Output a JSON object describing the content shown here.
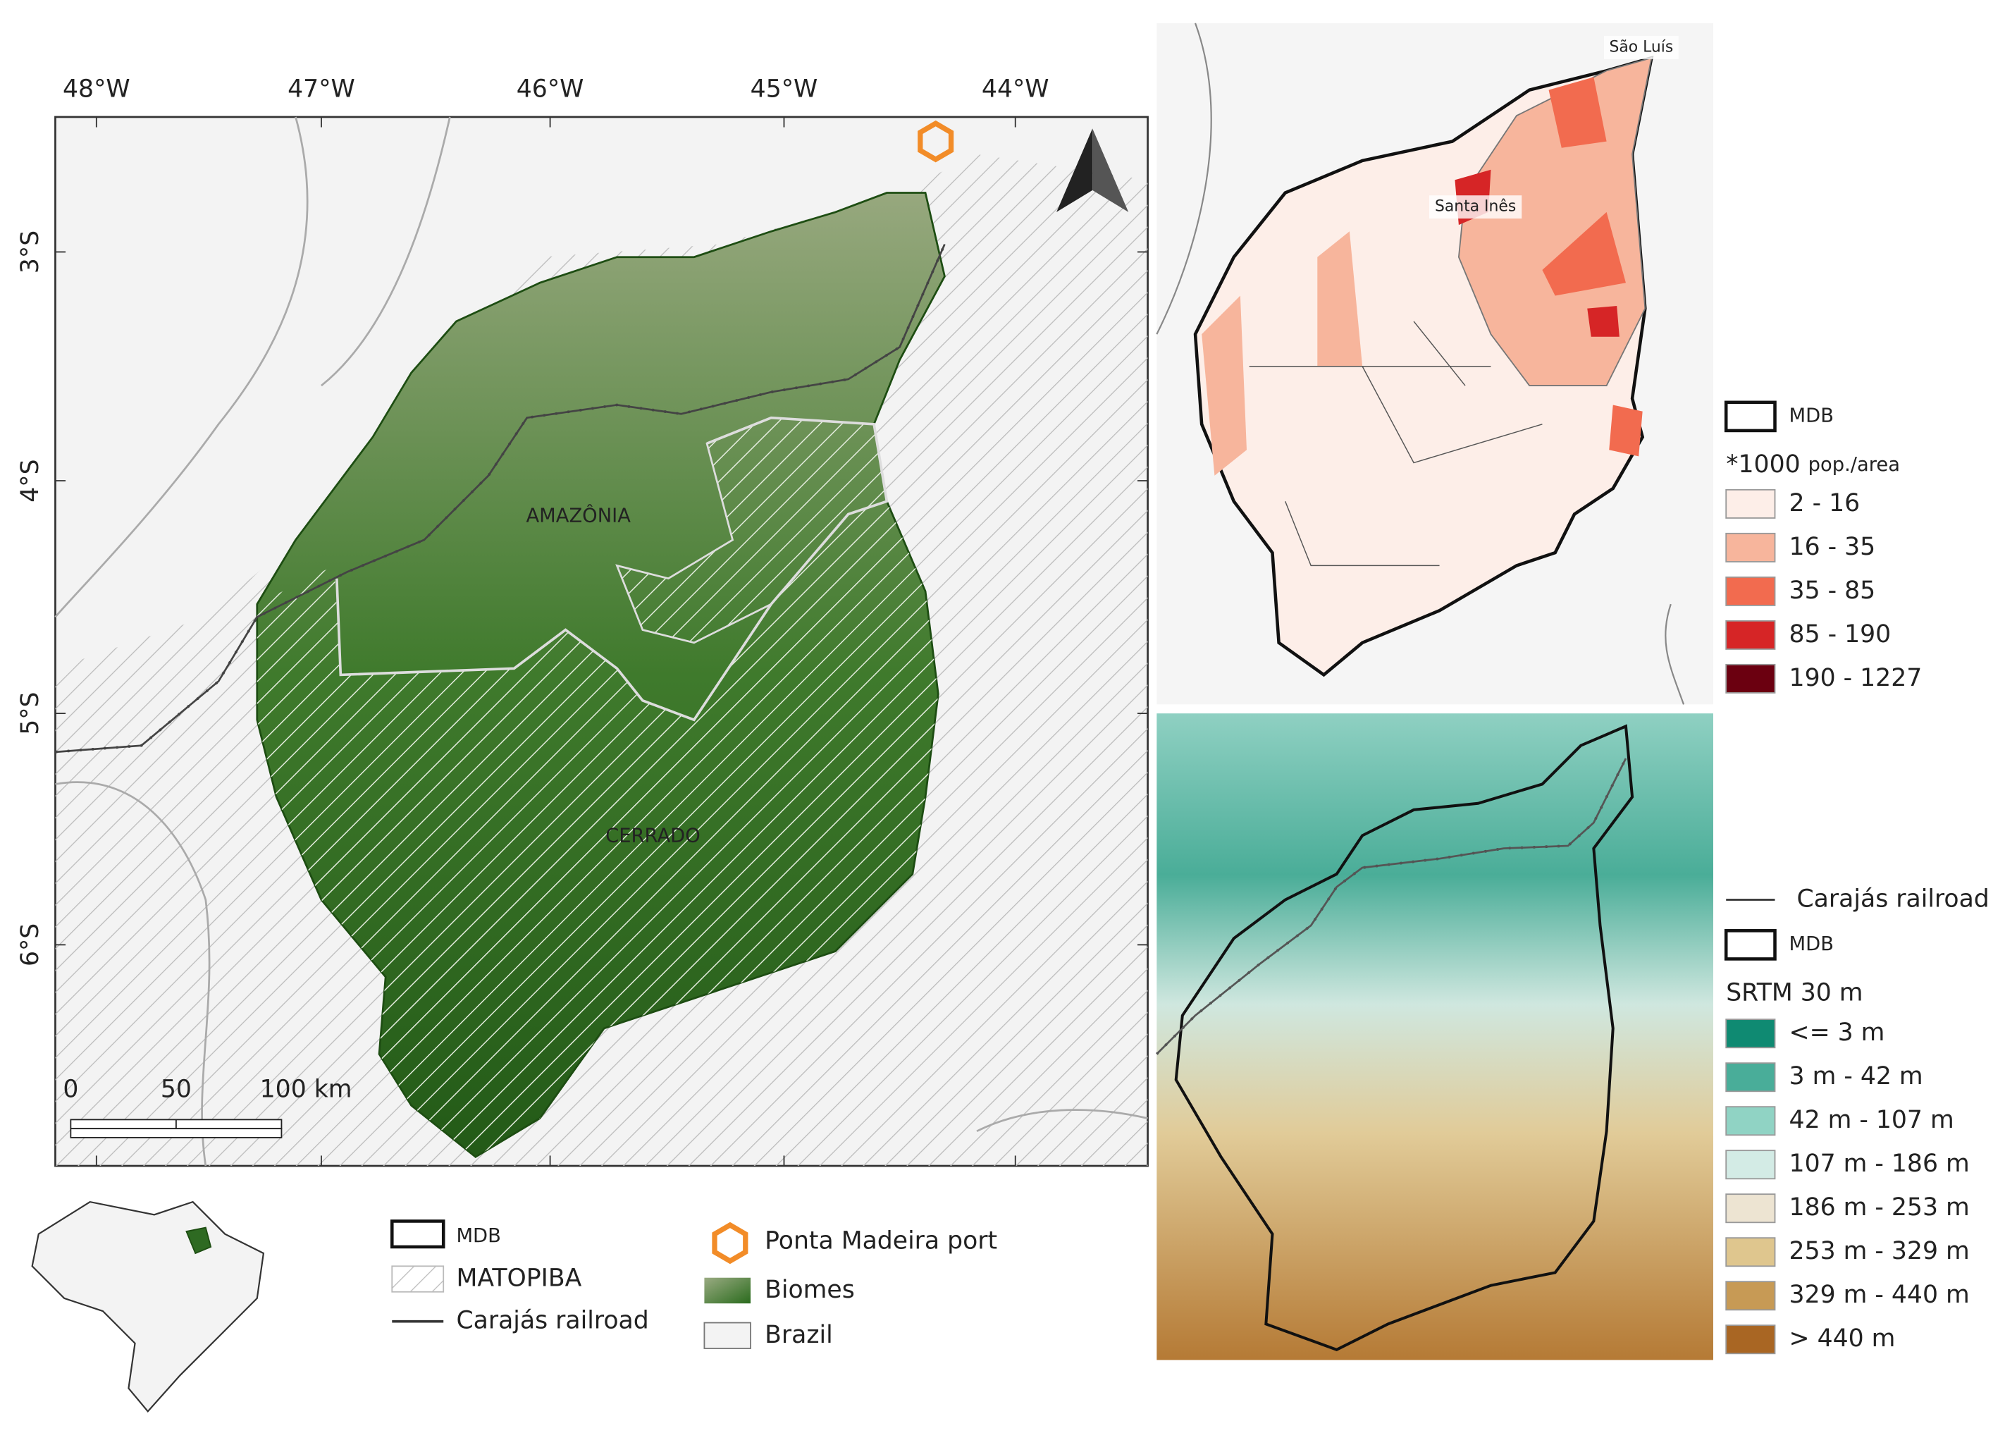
{
  "main_map": {
    "lon_labels": [
      "48°W",
      "47°W",
      "46°W",
      "45°W",
      "44°W"
    ],
    "lat_labels": [
      "3°S",
      "4°S",
      "5°S",
      "6°S"
    ],
    "region_labels": [
      "AMAZÔNIA",
      "CERRADO"
    ],
    "scale_bar": [
      "0",
      "50",
      "100 km"
    ]
  },
  "main_legend": {
    "items": [
      "MDB",
      "MATOPIBA",
      "Carajás railroad",
      "Ponta Madeira port",
      "Biomes",
      "Brazil"
    ]
  },
  "population_map": {
    "places": [
      "São Luís",
      "Santa Inês"
    ],
    "legend": {
      "boundary": "MDB",
      "title": "*1000",
      "title_unit": "pop./area",
      "classes": [
        {
          "label": "2 - 16",
          "color": "#fdeee8"
        },
        {
          "label": "16 - 35",
          "color": "#f7b59c"
        },
        {
          "label": "35 - 85",
          "color": "#f26b4f"
        },
        {
          "label": "85 - 190",
          "color": "#d62526"
        },
        {
          "label": "190 - 1227",
          "color": "#6b0010"
        }
      ]
    }
  },
  "elevation_map": {
    "legend": {
      "railroad": "Carajás railroad",
      "boundary": "MDB",
      "title": "SRTM 30 m",
      "classes": [
        {
          "label": "<= 3 m",
          "color": "#0f8a72"
        },
        {
          "label": "3 m - 42 m",
          "color": "#49ad99"
        },
        {
          "label": "42 m - 107 m",
          "color": "#90d3c4"
        },
        {
          "label": "107 m - 186 m",
          "color": "#d3ebe5"
        },
        {
          "label": "186 m - 253 m",
          "color": "#ede4d2"
        },
        {
          "label": "253 m - 329 m",
          "color": "#dfc68e"
        },
        {
          "label": "329 m - 440 m",
          "color": "#c79a55"
        },
        {
          "label": "> 440 m",
          "color": "#a96623"
        }
      ]
    }
  }
}
